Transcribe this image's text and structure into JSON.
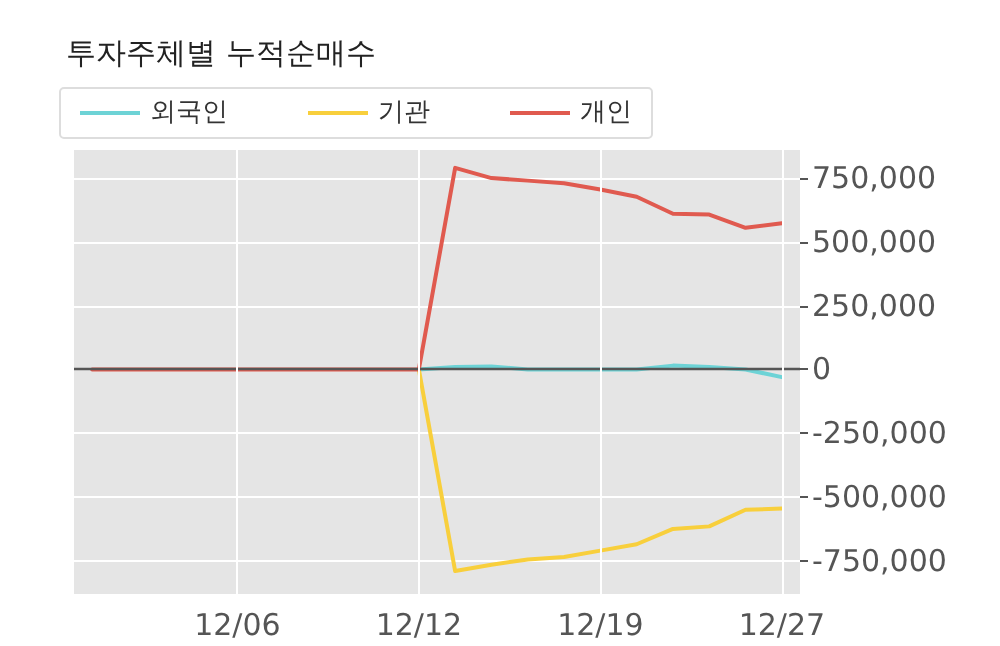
{
  "chart_data": {
    "type": "line",
    "title": "투자주체별 누적순매수",
    "categories": [
      null,
      null,
      null,
      null,
      "12/06",
      null,
      null,
      null,
      null,
      "12/12",
      null,
      null,
      null,
      null,
      "12/19",
      null,
      null,
      null,
      null,
      "12/27"
    ],
    "series": [
      {
        "name": "외국인",
        "color": "#6dd3d6",
        "values": [
          null,
          null,
          null,
          null,
          null,
          null,
          null,
          null,
          null,
          0,
          10000,
          12000,
          0,
          0,
          0,
          0,
          15000,
          10000,
          0,
          -30000
        ]
      },
      {
        "name": "기관",
        "color": "#f8cf3c",
        "values": [
          null,
          null,
          null,
          null,
          null,
          null,
          null,
          null,
          null,
          0,
          -790000,
          -765000,
          -745000,
          -735000,
          -710000,
          -685000,
          -625000,
          -615000,
          -550000,
          -545000
        ]
      },
      {
        "name": "개인",
        "color": "#e05a4f",
        "values": [
          0,
          0,
          0,
          0,
          0,
          0,
          0,
          0,
          0,
          0,
          790000,
          750000,
          740000,
          730000,
          705000,
          677000,
          610000,
          607000,
          555000,
          573000
        ]
      }
    ],
    "ylim": [
      -880000,
      860000
    ],
    "yticks": [
      {
        "value": -750000,
        "label": "-750,000"
      },
      {
        "value": -500000,
        "label": "-500,000"
      },
      {
        "value": -250000,
        "label": "-250,000"
      },
      {
        "value": 0,
        "label": "0"
      },
      {
        "value": 250000,
        "label": "250,000"
      },
      {
        "value": 500000,
        "label": "500,000"
      },
      {
        "value": 750000,
        "label": "750,000"
      }
    ],
    "ref_lines": [
      {
        "axis": "y",
        "value": 0,
        "color": "#555555"
      }
    ],
    "grid": true,
    "legend": "top left",
    "marker": "none",
    "line_style": "solid"
  }
}
